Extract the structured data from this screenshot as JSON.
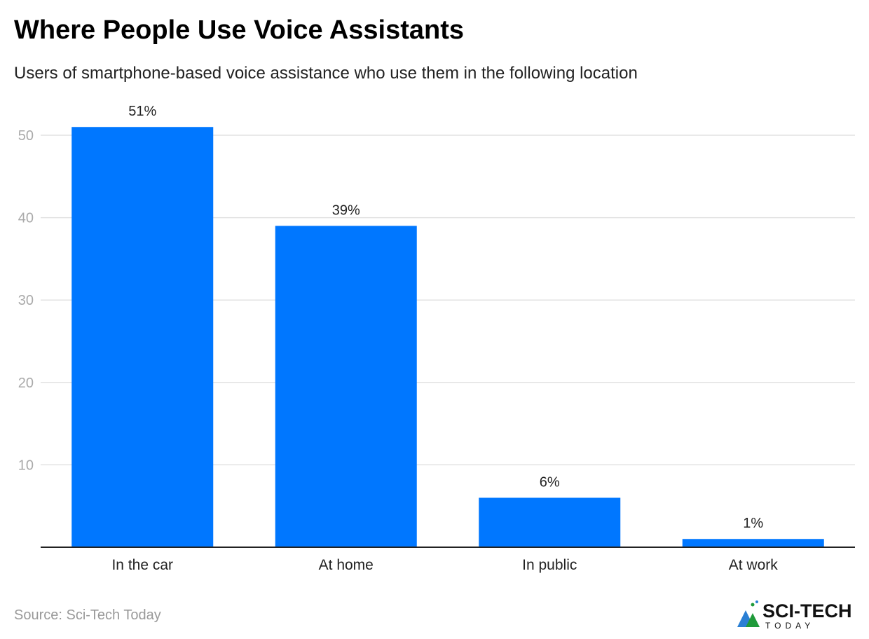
{
  "chart_data": {
    "type": "bar",
    "title": "Where People Use Voice Assistants",
    "subtitle": "Users of smartphone-based voice assistance who use them in the following location",
    "categories": [
      "In the car",
      "At home",
      "In public",
      "At work"
    ],
    "values": [
      51,
      39,
      6,
      1
    ],
    "data_labels": [
      "51%",
      "39%",
      "6%",
      "1%"
    ],
    "yticks": [
      10,
      20,
      30,
      40,
      50
    ],
    "ylim": [
      0,
      55
    ],
    "grid": true,
    "bar_color": "#0077ff",
    "xlabel": "",
    "ylabel": ""
  },
  "source": "Source: Sci-Tech Today",
  "logo": {
    "text_top": "SCI-TECH",
    "text_bottom": "TODAY"
  }
}
